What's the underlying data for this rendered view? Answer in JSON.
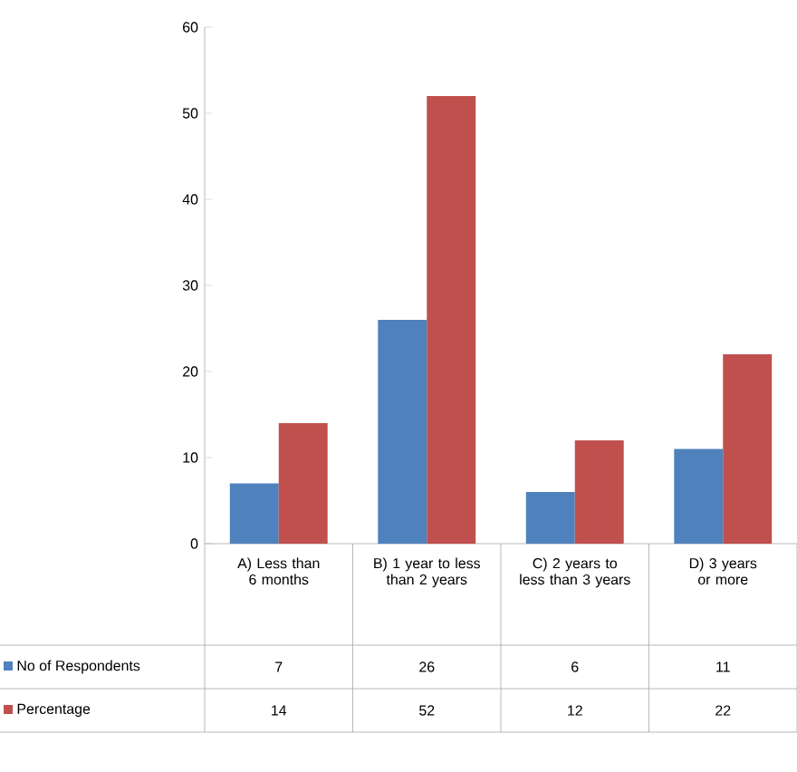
{
  "chart_data": {
    "type": "bar",
    "categories": [
      "A) Less than 6 months",
      "B) 1 year to less than 2 years",
      "C) 2 years to less than 3 years",
      "D) 3 years or more"
    ],
    "series": [
      {
        "name": "No of Respondents",
        "color": "#4f81bd",
        "values": [
          7,
          26,
          6,
          11
        ]
      },
      {
        "name": "Percentage",
        "color": "#c0504d",
        "values": [
          14,
          52,
          12,
          22
        ]
      }
    ],
    "ylim": [
      0,
      60
    ],
    "yticks": [
      0,
      10,
      20,
      30,
      40,
      50,
      60
    ],
    "data_labels": true,
    "legend": "bottom left"
  }
}
